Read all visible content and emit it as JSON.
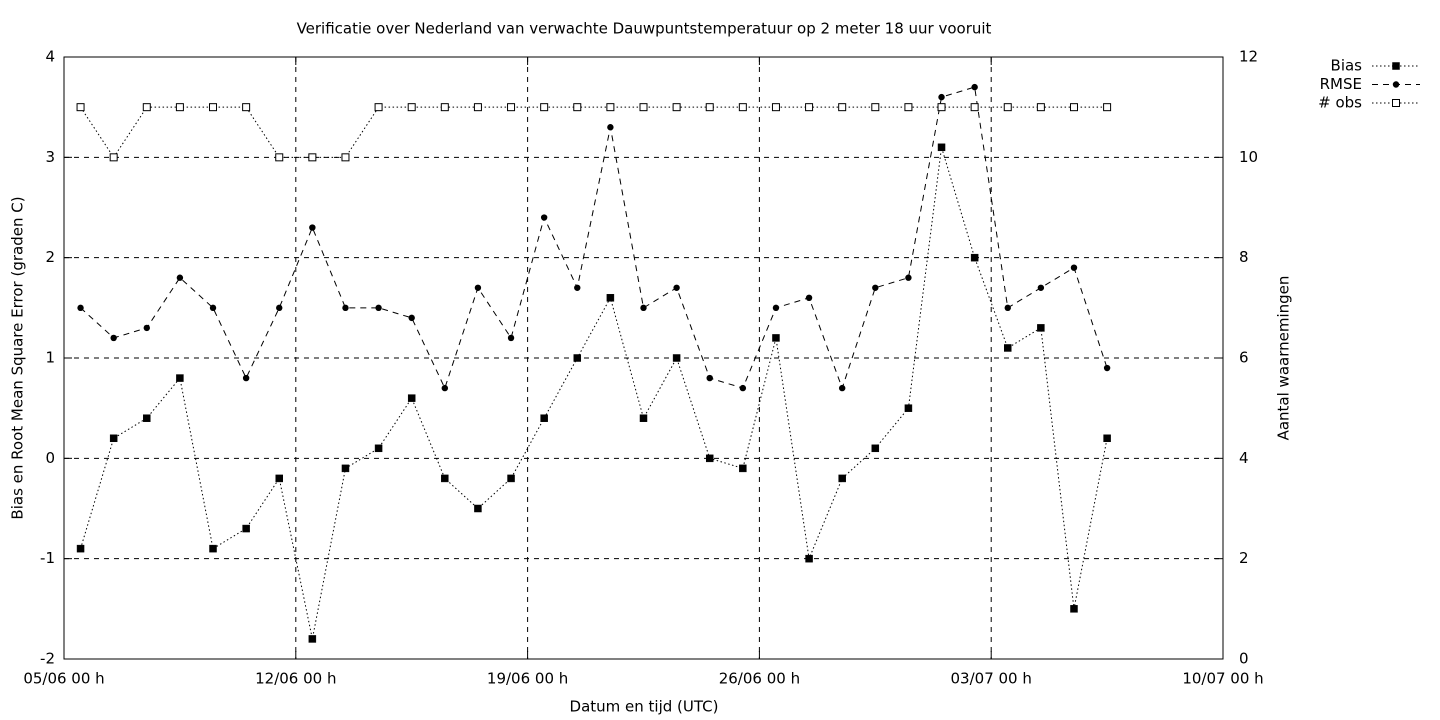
{
  "chart_data": {
    "type": "line",
    "title": "Verificatie over Nederland van verwachte Dauwpuntstemperatuur op 2 meter 18 uur vooruit",
    "x_label": "Datum en tijd (UTC)",
    "y_label": "Bias en Root Mean Square Error (graden C)",
    "y2_label": "Aantal waarnemingen",
    "x": [
      "05/06 12 h",
      "06/06 12 h",
      "07/06 12 h",
      "08/06 12 h",
      "09/06 12 h",
      "10/06 12 h",
      "11/06 12 h",
      "12/06 12 h",
      "13/06 12 h",
      "14/06 12 h",
      "15/06 12 h",
      "16/06 12 h",
      "17/06 12 h",
      "18/06 12 h",
      "19/06 12 h",
      "20/06 12 h",
      "21/06 12 h",
      "22/06 12 h",
      "23/06 12 h",
      "24/06 12 h",
      "25/06 12 h",
      "26/06 12 h",
      "27/06 12 h",
      "28/06 12 h",
      "29/06 12 h",
      "30/06 12 h",
      "01/07 12 h",
      "02/07 12 h",
      "03/07 12 h",
      "04/07 12 h",
      "05/07 12 h",
      "06/07 12 h"
    ],
    "xlim": [
      "05/06 00 h",
      "10/07 00 h"
    ],
    "xticks": [
      "05/06 00 h",
      "12/06 00 h",
      "19/06 00 h",
      "26/06 00 h",
      "03/07 00 h",
      "10/07 00 h"
    ],
    "ylim": [
      -2,
      4
    ],
    "yticks": [
      -2,
      -1,
      0,
      1,
      2,
      3,
      4
    ],
    "y2lim": [
      0,
      12
    ],
    "y2ticks": [
      0,
      2,
      4,
      6,
      8,
      10,
      12
    ],
    "grid": true,
    "legend": "outside-top-right",
    "series": [
      {
        "name": "Bias",
        "color": "#000000",
        "dash": "dotted",
        "marker": "filled-square",
        "values": [
          -0.9,
          0.2,
          0.4,
          0.8,
          -0.9,
          -0.7,
          -0.2,
          -1.8,
          -0.1,
          0.1,
          0.6,
          -0.2,
          -0.5,
          -0.2,
          0.4,
          1.0,
          1.6,
          0.4,
          1.0,
          0.0,
          -0.1,
          1.2,
          -1.0,
          -0.2,
          0.1,
          0.5,
          3.1,
          2.0,
          1.1,
          1.3,
          -1.5,
          0.2
        ]
      },
      {
        "name": "RMSE",
        "color": "#000000",
        "dash": "dashed",
        "marker": "filled-circle",
        "values": [
          1.5,
          1.2,
          1.3,
          1.8,
          1.5,
          0.8,
          1.5,
          2.3,
          1.5,
          1.5,
          1.4,
          0.7,
          1.7,
          1.2,
          2.4,
          1.7,
          3.3,
          1.5,
          1.7,
          0.8,
          0.7,
          1.5,
          1.6,
          0.7,
          1.7,
          1.8,
          3.6,
          3.7,
          1.5,
          1.7,
          1.9,
          0.9
        ]
      },
      {
        "name": "# obs",
        "color": "#000000",
        "dash": "dotted",
        "marker": "open-square",
        "axis": "y2",
        "values": [
          11,
          10,
          11,
          11,
          11,
          11,
          10,
          10,
          10,
          11,
          11,
          11,
          11,
          11,
          11,
          11,
          11,
          11,
          11,
          11,
          11,
          11,
          11,
          11,
          11,
          11,
          11,
          11,
          11,
          11,
          11,
          11
        ]
      }
    ]
  }
}
